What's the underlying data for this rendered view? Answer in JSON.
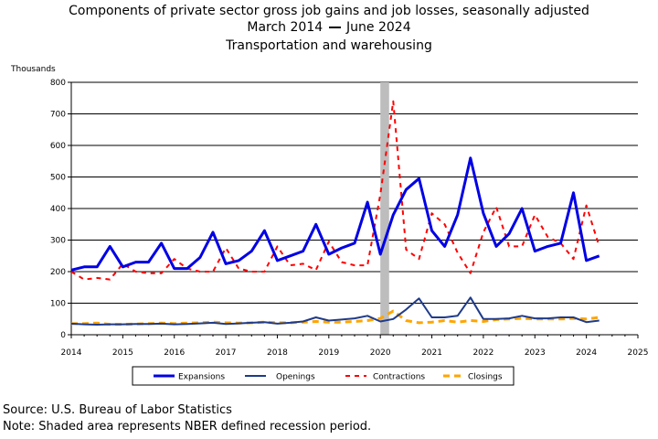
{
  "chart_data": {
    "type": "line",
    "title": "Components of private sector gross job gains and job losses, seasonally adjusted",
    "subtitle_start": "March 2014",
    "subtitle_end": "June 2024",
    "subtitle2": "Transportation and warehousing",
    "ylabel": "Thousands",
    "ylim": [
      0,
      800
    ],
    "yticks": [
      0,
      100,
      200,
      300,
      400,
      500,
      600,
      700,
      800
    ],
    "xlim": [
      2014,
      2025
    ],
    "xticks": [
      2014,
      2015,
      2016,
      2017,
      2018,
      2019,
      2020,
      2021,
      2022,
      2023,
      2024,
      2025
    ],
    "grid": "horizontal",
    "recession": {
      "start": 2020.0,
      "end": 2020.17
    },
    "x": [
      2014.0,
      2014.25,
      2014.5,
      2014.75,
      2015.0,
      2015.25,
      2015.5,
      2015.75,
      2016.0,
      2016.25,
      2016.5,
      2016.75,
      2017.0,
      2017.25,
      2017.5,
      2017.75,
      2018.0,
      2018.25,
      2018.5,
      2018.75,
      2019.0,
      2019.25,
      2019.5,
      2019.75,
      2020.0,
      2020.25,
      2020.5,
      2020.75,
      2021.0,
      2021.25,
      2021.5,
      2021.75,
      2022.0,
      2022.25,
      2022.5,
      2022.75,
      2023.0,
      2023.25,
      2023.5,
      2023.75,
      2024.0,
      2024.25
    ],
    "series": [
      {
        "name": "Expansions",
        "color": "#0000e6",
        "dash": "solid",
        "width": 3,
        "values": [
          205,
          215,
          215,
          280,
          215,
          230,
          230,
          290,
          210,
          210,
          245,
          325,
          225,
          235,
          265,
          330,
          235,
          250,
          265,
          350,
          255,
          275,
          290,
          420,
          255,
          380,
          460,
          495,
          330,
          280,
          380,
          560,
          385,
          280,
          320,
          400,
          265,
          280,
          290,
          450,
          235,
          250
        ]
      },
      {
        "name": "Openings",
        "color": "#1f3b8a",
        "dash": "solid",
        "width": 2,
        "values": [
          35,
          33,
          32,
          33,
          33,
          34,
          34,
          35,
          33,
          34,
          36,
          38,
          34,
          36,
          38,
          40,
          35,
          38,
          42,
          55,
          45,
          48,
          52,
          60,
          42,
          50,
          80,
          115,
          55,
          55,
          60,
          118,
          50,
          50,
          52,
          60,
          52,
          52,
          55,
          55,
          40,
          45
        ]
      },
      {
        "name": "Contractions",
        "color": "#ff0000",
        "dash": "5,5",
        "width": 2,
        "values": [
          200,
          175,
          180,
          175,
          225,
          200,
          195,
          195,
          240,
          210,
          200,
          200,
          275,
          210,
          200,
          200,
          280,
          220,
          225,
          205,
          295,
          230,
          220,
          220,
          445,
          740,
          270,
          240,
          385,
          350,
          260,
          195,
          325,
          405,
          280,
          280,
          380,
          310,
          290,
          240,
          410,
          280
        ]
      },
      {
        "name": "Closings",
        "color": "#ffa500",
        "dash": "7,5",
        "width": 3,
        "values": [
          35,
          35,
          37,
          33,
          33,
          34,
          35,
          37,
          35,
          37,
          38,
          40,
          38,
          37,
          38,
          40,
          38,
          38,
          40,
          42,
          40,
          40,
          42,
          45,
          52,
          75,
          45,
          38,
          40,
          45,
          40,
          45,
          42,
          48,
          50,
          52,
          50,
          50,
          50,
          52,
          50,
          55
        ]
      }
    ]
  },
  "footer": {
    "source": "Source: U.S. Bureau of Labor Statistics",
    "note": "Note: Shaded area represents NBER defined recession period."
  }
}
